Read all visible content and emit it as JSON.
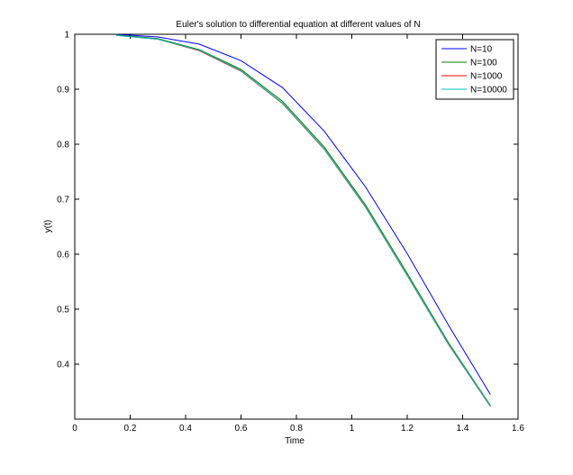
{
  "chart_data": {
    "type": "line",
    "title": "Euler's solution to differential equation at different values of N",
    "xlabel": "Time",
    "ylabel": "y(t)",
    "xlim": [
      0,
      1.6
    ],
    "ylim": [
      0.3,
      1.0
    ],
    "x_ticks": [
      "0",
      "0.2",
      "0.4",
      "0.6",
      "0.8",
      "1",
      "1.2",
      "1.4",
      "1.6"
    ],
    "y_ticks": [
      "0.4",
      "0.5",
      "0.6",
      "0.7",
      "0.8",
      "0.9",
      "1"
    ],
    "grid": false,
    "legend_position": "top-right",
    "series": [
      {
        "name": "N=10",
        "color": "#0000ff",
        "x": [
          0.15,
          0.3,
          0.45,
          0.6,
          0.75,
          0.9,
          1.05,
          1.2,
          1.35,
          1.5
        ],
        "y": [
          1.0,
          0.995,
          0.982,
          0.952,
          0.903,
          0.824,
          0.722,
          0.601,
          0.47,
          0.345
        ]
      },
      {
        "name": "N=100",
        "color": "#008000",
        "x": [
          0.15,
          0.3,
          0.45,
          0.6,
          0.75,
          0.9,
          1.05,
          1.2,
          1.35,
          1.5
        ],
        "y": [
          0.999,
          0.992,
          0.972,
          0.936,
          0.878,
          0.795,
          0.689,
          0.565,
          0.438,
          0.325
        ]
      },
      {
        "name": "N=1000",
        "color": "#ff0000",
        "x": [
          0.15,
          0.3,
          0.45,
          0.6,
          0.75,
          0.9,
          1.05,
          1.2,
          1.35,
          1.5
        ],
        "y": [
          0.998,
          0.991,
          0.97,
          0.933,
          0.874,
          0.791,
          0.685,
          0.561,
          0.435,
          0.323
        ]
      },
      {
        "name": "N=10000",
        "color": "#00bfbf",
        "x": [
          0.15,
          0.3,
          0.45,
          0.6,
          0.75,
          0.9,
          1.05,
          1.2,
          1.35,
          1.5
        ],
        "y": [
          0.998,
          0.991,
          0.971,
          0.934,
          0.875,
          0.792,
          0.686,
          0.562,
          0.436,
          0.324
        ]
      }
    ]
  }
}
